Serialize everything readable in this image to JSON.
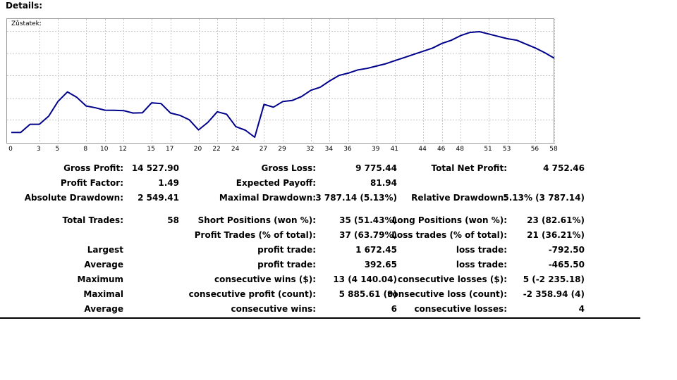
{
  "page": {
    "title": "Details:"
  },
  "chart_data": {
    "type": "line",
    "title": "Zůstatek:",
    "x_ticks": [
      "0",
      "3",
      "5",
      "8",
      "10",
      "12",
      "15",
      "17",
      "20",
      "22",
      "24",
      "27",
      "29",
      "32",
      "34",
      "36",
      "39",
      "41",
      "44",
      "46",
      "48",
      "51",
      "53",
      "56",
      "58"
    ],
    "x": [
      0,
      1,
      2,
      3,
      4,
      5,
      6,
      7,
      8,
      9,
      10,
      11,
      12,
      13,
      14,
      15,
      16,
      17,
      18,
      19,
      20,
      21,
      22,
      23,
      24,
      25,
      26,
      27,
      28,
      29,
      30,
      31,
      32,
      33,
      34,
      35,
      36,
      37,
      38,
      39,
      40,
      41,
      42,
      43,
      44,
      45,
      46,
      47,
      48,
      49,
      50,
      51,
      52,
      53,
      54,
      55,
      56,
      57,
      58
    ],
    "values": [
      0,
      0,
      530,
      528,
      1050,
      2000,
      2600,
      2250,
      1700,
      1580,
      1430,
      1420,
      1400,
      1250,
      1260,
      1900,
      1850,
      1250,
      1100,
      820,
      170,
      650,
      1330,
      1170,
      370,
      150,
      -300,
      1800,
      1620,
      1980,
      2050,
      2300,
      2700,
      2900,
      3300,
      3650,
      3800,
      4000,
      4100,
      4250,
      4400,
      4600,
      4800,
      5000,
      5200,
      5400,
      5700,
      5900,
      6200,
      6400,
      6450,
      6300,
      6150,
      6000,
      5900,
      5650,
      5400,
      5100,
      4752
    ],
    "grid": true,
    "y_ticks_shown": false,
    "color": "#00008b"
  },
  "stats": {
    "row1": {
      "l1": "Gross Profit:",
      "v1": "14 527.90",
      "l2": "Gross Loss:",
      "v2": "9 775.44",
      "l3": "Total Net Profit:",
      "v3": "4 752.46"
    },
    "row2": {
      "l1": "Profit Factor:",
      "v1": "1.49",
      "l2": "Expected Payoff:",
      "v2": "81.94",
      "l3": "",
      "v3": ""
    },
    "row3": {
      "l1": "Absolute Drawdown:",
      "v1": "2 549.41",
      "l2": "Maximal Drawdown:",
      "v2": "3 787.14 (5.13%)",
      "l3": "Relative Drawdown:",
      "v3": "5.13% (3 787.14)"
    },
    "row4": {
      "l1": "Total Trades:",
      "v1": "58",
      "l2": "Short Positions (won %):",
      "v2": "35 (51.43%)",
      "l3": "Long Positions (won %):",
      "v3": "23 (82.61%)"
    },
    "row5": {
      "l1": "",
      "v1": "",
      "l2": "Profit Trades (% of total):",
      "v2": "37 (63.79%)",
      "l3": "Loss trades (% of total):",
      "v3": "21 (36.21%)"
    },
    "row6": {
      "l1": "Largest",
      "v1": "",
      "l2": "profit trade:",
      "v2": "1 672.45",
      "l3": "loss trade:",
      "v3": "-792.50"
    },
    "row7": {
      "l1": "Average",
      "v1": "",
      "l2": "profit trade:",
      "v2": "392.65",
      "l3": "loss trade:",
      "v3": "-465.50"
    },
    "row8": {
      "l1": "Maximum",
      "v1": "",
      "l2": "consecutive wins ($):",
      "v2": "13 (4 140.04)",
      "l3": "consecutive losses ($):",
      "v3": "5 (-2 235.18)"
    },
    "row9": {
      "l1": "Maximal",
      "v1": "",
      "l2": "consecutive profit (count):",
      "v2": "5 885.61 (9)",
      "l3": "consecutive loss (count):",
      "v3": "-2 358.94 (4)"
    },
    "row10": {
      "l1": "Average",
      "v1": "",
      "l2": "consecutive wins:",
      "v2": "6",
      "l3": "consecutive losses:",
      "v3": "4"
    }
  }
}
